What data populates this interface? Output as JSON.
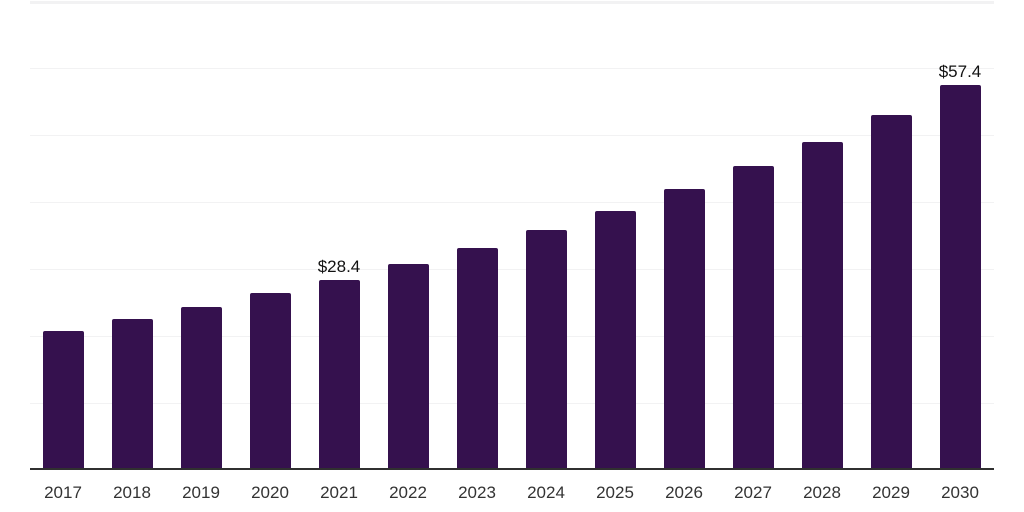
{
  "chart_data": {
    "type": "bar",
    "categories": [
      "2017",
      "2018",
      "2019",
      "2020",
      "2021",
      "2022",
      "2023",
      "2024",
      "2025",
      "2026",
      "2027",
      "2028",
      "2029",
      "2030"
    ],
    "values": [
      20.8,
      22.5,
      24.3,
      26.4,
      28.4,
      30.7,
      33.2,
      35.8,
      38.7,
      41.9,
      45.3,
      49.0,
      53.0,
      57.4
    ],
    "bar_labels": {
      "2021": "$28.4",
      "2030": "$57.4"
    },
    "title": "",
    "xlabel": "",
    "ylabel": "",
    "ylim": [
      0,
      70.15
    ],
    "gridline_values": [
      10,
      20,
      30,
      40,
      50,
      60,
      70
    ],
    "grid": "horizontal",
    "legend": "none",
    "currency_prefix": "$"
  },
  "colors": {
    "background": "#ffffff",
    "bar": "#35114e",
    "gridline": "#f2f2f3",
    "axis_line": "#303030",
    "tick_label": "#333333",
    "value_label": "#111111"
  }
}
